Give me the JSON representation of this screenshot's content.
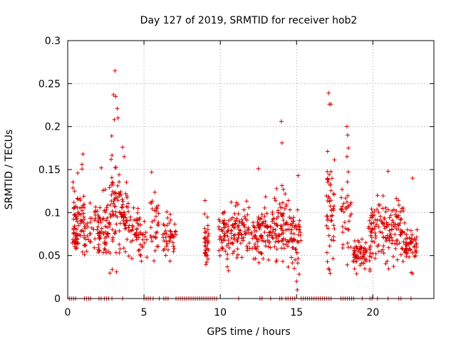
{
  "chart_data": {
    "type": "scatter",
    "title": "Day 127 of 2019, SRMTID for receiver hob2",
    "xlabel": "GPS time / hours",
    "ylabel": "SRMTID / TECUs",
    "xlim": [
      0,
      24
    ],
    "ylim": [
      0,
      0.3
    ],
    "xticks": [
      0,
      5,
      10,
      15,
      20
    ],
    "xtick_labels": [
      "0",
      "5",
      "10",
      "15",
      "20"
    ],
    "yticks": [
      0,
      0.05,
      0.1,
      0.15,
      0.2,
      0.25,
      0.3
    ],
    "ytick_labels": [
      "0",
      "0.05",
      "0.1",
      "0.15",
      "0.2",
      "0.25",
      "0.3"
    ],
    "grid": true,
    "marker": "+",
    "marker_color": "#d40000",
    "seed": 127,
    "series": [
      {
        "name": "hob2",
        "segments": [
          {
            "x": [
              0.3,
              0.65
            ],
            "mean": 0.09,
            "spread": 0.03,
            "count": 40
          },
          {
            "x": [
              0.6,
              1.1
            ],
            "mean": 0.1,
            "spread": 0.035,
            "count": 45
          },
          {
            "x": [
              1.1,
              1.6
            ],
            "mean": 0.075,
            "spread": 0.02,
            "count": 20
          },
          {
            "x": [
              1.7,
              2.1
            ],
            "mean": 0.09,
            "spread": 0.02,
            "count": 20
          },
          {
            "x": [
              2.0,
              2.7
            ],
            "mean": 0.085,
            "spread": 0.03,
            "count": 50
          },
          {
            "x": [
              2.7,
              3.4
            ],
            "mean": 0.11,
            "spread": 0.05,
            "count": 60
          },
          {
            "x": [
              3.4,
              4.0
            ],
            "mean": 0.1,
            "spread": 0.03,
            "count": 45
          },
          {
            "x": [
              4.0,
              4.7
            ],
            "mean": 0.08,
            "spread": 0.02,
            "count": 35
          },
          {
            "x": [
              4.7,
              5.2
            ],
            "mean": 0.07,
            "spread": 0.02,
            "count": 20
          },
          {
            "x": [
              5.4,
              6.0
            ],
            "mean": 0.085,
            "spread": 0.025,
            "count": 30
          },
          {
            "x": [
              6.2,
              7.1
            ],
            "mean": 0.075,
            "spread": 0.018,
            "count": 45
          },
          {
            "x": [
              8.95,
              9.25
            ],
            "mean": 0.065,
            "spread": 0.02,
            "count": 35
          },
          {
            "x": [
              9.9,
              10.6
            ],
            "mean": 0.075,
            "spread": 0.02,
            "count": 50
          },
          {
            "x": [
              10.6,
              11.6
            ],
            "mean": 0.08,
            "spread": 0.025,
            "count": 60
          },
          {
            "x": [
              11.6,
              12.6
            ],
            "mean": 0.075,
            "spread": 0.02,
            "count": 55
          },
          {
            "x": [
              12.6,
              13.6
            ],
            "mean": 0.08,
            "spread": 0.025,
            "count": 60
          },
          {
            "x": [
              13.6,
              14.6
            ],
            "mean": 0.085,
            "spread": 0.03,
            "count": 70
          },
          {
            "x": [
              14.6,
              15.3
            ],
            "mean": 0.07,
            "spread": 0.025,
            "count": 45
          },
          {
            "x": [
              16.95,
              17.5
            ],
            "mean": 0.1,
            "spread": 0.045,
            "count": 50
          },
          {
            "x": [
              17.9,
              18.6
            ],
            "mean": 0.09,
            "spread": 0.035,
            "count": 35
          },
          {
            "x": [
              18.7,
              19.6
            ],
            "mean": 0.05,
            "spread": 0.015,
            "count": 60
          },
          {
            "x": [
              19.7,
              20.5
            ],
            "mean": 0.075,
            "spread": 0.03,
            "count": 55
          },
          {
            "x": [
              20.5,
              21.4
            ],
            "mean": 0.08,
            "spread": 0.025,
            "count": 55
          },
          {
            "x": [
              21.4,
              22.1
            ],
            "mean": 0.08,
            "spread": 0.025,
            "count": 45
          },
          {
            "x": [
              22.1,
              22.9
            ],
            "mean": 0.06,
            "spread": 0.015,
            "count": 50
          }
        ],
        "highlights": [
          [
            3.1,
            0.265
          ],
          [
            3.0,
            0.237
          ],
          [
            3.15,
            0.235
          ],
          [
            3.25,
            0.221
          ],
          [
            3.3,
            0.21
          ],
          [
            3.6,
            0.176
          ],
          [
            3.7,
            0.165
          ],
          [
            14.0,
            0.206
          ],
          [
            14.05,
            0.181
          ],
          [
            17.1,
            0.239
          ],
          [
            17.15,
            0.226
          ],
          [
            17.25,
            0.226
          ],
          [
            18.3,
            0.2
          ],
          [
            18.35,
            0.19
          ],
          [
            18.4,
            0.175
          ],
          [
            18.3,
            0.165
          ],
          [
            9.0,
            0.114
          ],
          [
            12.5,
            0.151
          ],
          [
            15.1,
            0.143
          ],
          [
            21.0,
            0.148
          ],
          [
            14.85,
            0.035
          ],
          [
            15.0,
            0.02
          ],
          [
            15.05,
            0.01
          ],
          [
            1.0,
            0.168
          ],
          [
            2.2,
            0.152
          ],
          [
            5.5,
            0.147
          ],
          [
            12.2,
            0.046
          ],
          [
            22.6,
            0.14
          ]
        ],
        "zero_bands": [
          [
            0.1,
            0.55
          ],
          [
            1.1,
            1.4
          ],
          [
            1.5,
            1.6
          ],
          [
            2.05,
            2.2
          ],
          [
            2.4,
            2.8
          ],
          [
            2.9,
            3.0
          ],
          [
            3.6,
            3.7
          ],
          [
            5.0,
            5.5
          ],
          [
            5.6,
            5.7
          ],
          [
            6.0,
            6.1
          ],
          [
            6.3,
            6.7
          ],
          [
            7.1,
            9.1
          ],
          [
            9.2,
            9.9
          ],
          [
            11.2,
            11.25
          ],
          [
            12.6,
            12.75
          ],
          [
            13.3,
            13.4
          ],
          [
            13.9,
            14.1
          ],
          [
            14.3,
            14.5
          ],
          [
            14.6,
            14.9
          ],
          [
            15.3,
            17.3
          ],
          [
            17.9,
            18.5
          ],
          [
            18.6,
            18.8
          ],
          [
            19.3,
            19.4
          ],
          [
            19.8,
            19.95
          ],
          [
            20.3,
            20.4
          ],
          [
            21.0,
            21.1
          ],
          [
            21.7,
            21.9
          ],
          [
            22.5,
            22.6
          ]
        ]
      }
    ]
  }
}
